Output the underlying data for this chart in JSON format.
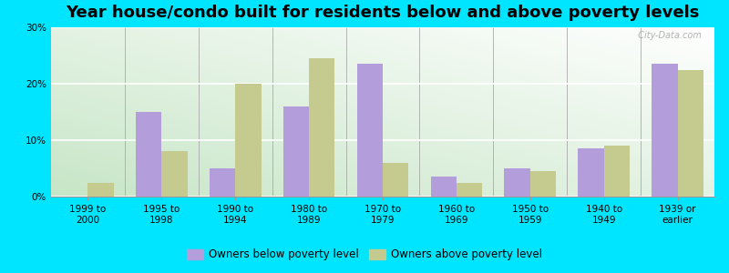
{
  "title": "Year house/condo built for residents below and above poverty levels",
  "categories": [
    "1999 to\n2000",
    "1995 to\n1998",
    "1990 to\n1994",
    "1980 to\n1989",
    "1970 to\n1979",
    "1960 to\n1969",
    "1950 to\n1959",
    "1940 to\n1949",
    "1939 or\nearlier"
  ],
  "below_poverty": [
    0.0,
    15.0,
    5.0,
    16.0,
    23.5,
    3.5,
    5.0,
    8.5,
    23.5
  ],
  "above_poverty": [
    2.5,
    8.0,
    20.0,
    24.5,
    6.0,
    2.5,
    4.5,
    9.0,
    22.5
  ],
  "below_color": "#b39ddb",
  "above_color": "#c5ca8e",
  "background_outer": "#00e5ff",
  "ylim": [
    0,
    30
  ],
  "yticks": [
    0,
    10,
    20,
    30
  ],
  "bar_width": 0.35,
  "legend_below_label": "Owners below poverty level",
  "legend_above_label": "Owners above poverty level",
  "title_fontsize": 13,
  "tick_fontsize": 7.5,
  "legend_fontsize": 8.5
}
